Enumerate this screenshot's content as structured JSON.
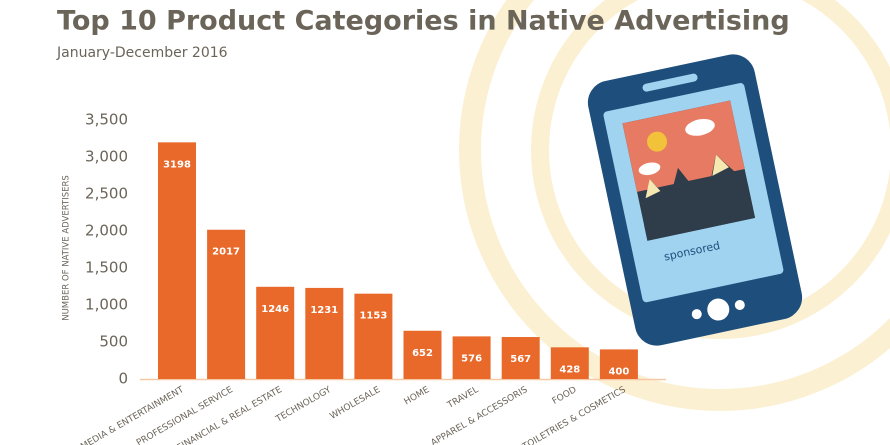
{
  "chart_data": {
    "type": "bar",
    "title": "Top 10 Product Categories in Native Advertising",
    "subtitle": "January-December 2016",
    "y_axis_label": "NUMBER OF NATIVE ADVERTISERS",
    "categories": [
      "MEDIA & ENTERTAINMENT",
      "PROFESSIONAL SERVICE",
      "FINANCIAL & REAL ESTATE",
      "TECHNOLOGY",
      "WHOLESALE",
      "HOME",
      "TRAVEL",
      "APPAREL & ACCESSORIS",
      "FOOD",
      "TOILETRIES & COSMETICS"
    ],
    "values": [
      3198,
      2017,
      1246,
      1231,
      1153,
      652,
      576,
      567,
      428,
      400
    ],
    "color": "#e8692a",
    "ylim": [
      0,
      3500
    ],
    "yticks": [
      0,
      500,
      {
        "value": 1000,
        "label": "1,000"
      },
      {
        "value": 1500,
        "label": "1,500"
      },
      {
        "value": 2000,
        "label": "2,000"
      },
      {
        "value": 2500,
        "label": "2,500"
      },
      {
        "value": 3000,
        "label": "3,000"
      },
      {
        "value": 3500,
        "label": "3,500"
      }
    ],
    "grid": false
  },
  "illustration": {
    "label": "sponsored"
  }
}
